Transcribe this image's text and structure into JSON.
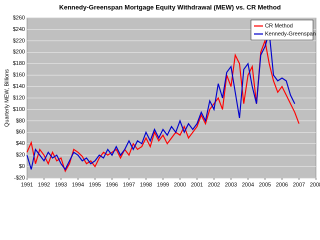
{
  "chart_data": {
    "type": "line",
    "title": "Kennedy-Greenspan Mortgage Equity Withdrawal (MEW) vs. CR Method",
    "y_label": "Quarterly MEW, Billions",
    "x": [
      1991,
      1991.25,
      1991.5,
      1991.75,
      1992,
      1992.25,
      1992.5,
      1992.75,
      1993,
      1993.25,
      1993.5,
      1993.75,
      1994,
      1994.25,
      1994.5,
      1994.75,
      1995,
      1995.25,
      1995.5,
      1995.75,
      1996,
      1996.25,
      1996.5,
      1996.75,
      1997,
      1997.25,
      1997.5,
      1997.75,
      1998,
      1998.25,
      1998.5,
      1998.75,
      1999,
      1999.25,
      1999.5,
      1999.75,
      2000,
      2000.25,
      2000.5,
      2000.75,
      2001,
      2001.25,
      2001.5,
      2001.75,
      2002,
      2002.25,
      2002.5,
      2002.75,
      2003,
      2003.25,
      2003.5,
      2003.75,
      2004,
      2004.25,
      2004.5,
      2004.75,
      2005,
      2005.25,
      2005.5,
      2005.75,
      2006,
      2006.25,
      2006.5,
      2006.75,
      2007
    ],
    "series": [
      {
        "name": "CR Method",
        "color": "#ff0000",
        "values": [
          25,
          42,
          5,
          30,
          20,
          5,
          25,
          10,
          15,
          -8,
          5,
          30,
          25,
          18,
          5,
          10,
          0,
          15,
          25,
          20,
          25,
          30,
          15,
          30,
          20,
          40,
          30,
          35,
          50,
          35,
          60,
          45,
          55,
          40,
          50,
          60,
          55,
          70,
          50,
          60,
          70,
          90,
          75,
          100,
          110,
          120,
          100,
          160,
          140,
          195,
          180,
          110,
          160,
          175,
          110,
          200,
          220,
          180,
          150,
          130,
          140,
          125,
          110,
          95,
          75
        ]
      },
      {
        "name": "Kennedy-Greenspan",
        "color": "#0000cc",
        "values": [
          20,
          -5,
          30,
          20,
          10,
          25,
          15,
          20,
          5,
          -5,
          10,
          25,
          20,
          10,
          15,
          5,
          10,
          20,
          15,
          30,
          20,
          35,
          20,
          30,
          45,
          30,
          45,
          40,
          60,
          45,
          65,
          50,
          65,
          55,
          70,
          60,
          80,
          60,
          75,
          65,
          75,
          95,
          80,
          115,
          100,
          145,
          120,
          165,
          175,
          130,
          85,
          170,
          180,
          140,
          110,
          195,
          210,
          235,
          160,
          150,
          155,
          150,
          125,
          110,
          null
        ]
      }
    ],
    "xlim": [
      1991,
      2008
    ],
    "xticks": [
      1991,
      1992,
      1993,
      1994,
      1995,
      1996,
      1997,
      1998,
      1999,
      2000,
      2001,
      2002,
      2003,
      2004,
      2005,
      2006,
      2007,
      2008
    ],
    "ylim": [
      -20,
      260
    ],
    "yticks": [
      {
        "value": -20,
        "label": "-$20"
      },
      {
        "value": 0,
        "label": "$0"
      },
      {
        "value": 20,
        "label": "$20"
      },
      {
        "value": 40,
        "label": "$40"
      },
      {
        "value": 60,
        "label": "$60"
      },
      {
        "value": 80,
        "label": "$80"
      },
      {
        "value": 100,
        "label": "$100"
      },
      {
        "value": 120,
        "label": "$120"
      },
      {
        "value": 140,
        "label": "$140"
      },
      {
        "value": 160,
        "label": "$160"
      },
      {
        "value": 180,
        "label": "$180"
      },
      {
        "value": 200,
        "label": "$200"
      },
      {
        "value": 220,
        "label": "$220"
      },
      {
        "value": 240,
        "label": "$240"
      },
      {
        "value": 260,
        "label": "$260"
      }
    ],
    "grid": true,
    "legend": "top-right"
  }
}
